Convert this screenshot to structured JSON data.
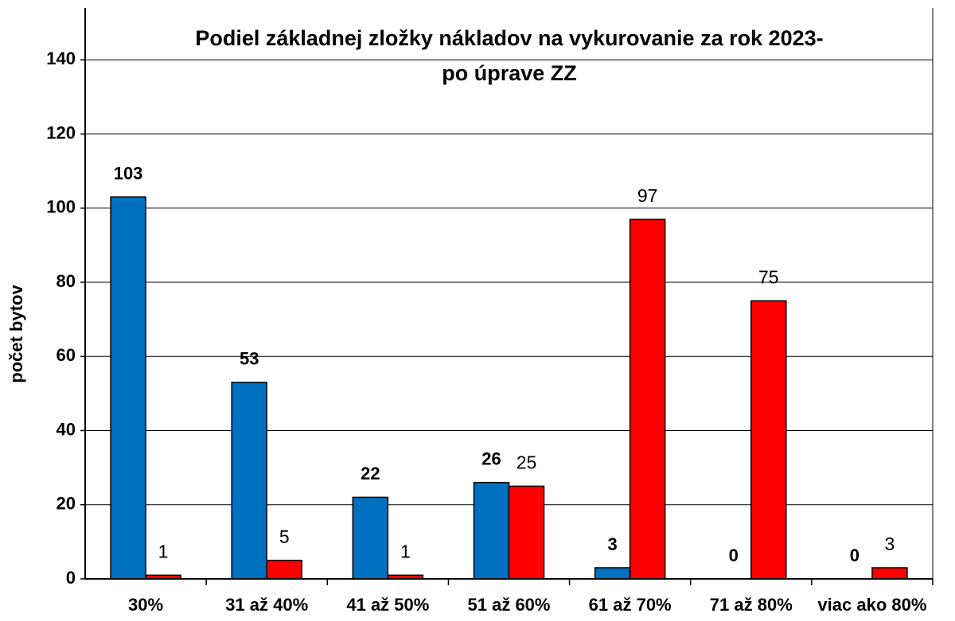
{
  "chart_data": {
    "type": "bar",
    "title": [
      "Podiel základnej zložky nákladov na vykurovanie za rok 2023-",
      "po úprave ZZ"
    ],
    "y_label": "počet bytov",
    "categories": [
      "30%",
      "31 až 40%",
      "41 až 50%",
      "51 až 60%",
      "61 až 70%",
      "71 až 80%",
      "viac ako 80%"
    ],
    "series": [
      {
        "color": "#0070c0",
        "values": [
          103,
          53,
          22,
          26,
          3,
          0,
          0
        ]
      },
      {
        "color": "#ff0000",
        "values": [
          1,
          5,
          1,
          25,
          97,
          75,
          3
        ]
      }
    ],
    "ylim": [
      0,
      154
    ],
    "yticks": [
      0,
      20,
      40,
      60,
      80,
      100,
      120,
      140
    ],
    "grid": true
  }
}
